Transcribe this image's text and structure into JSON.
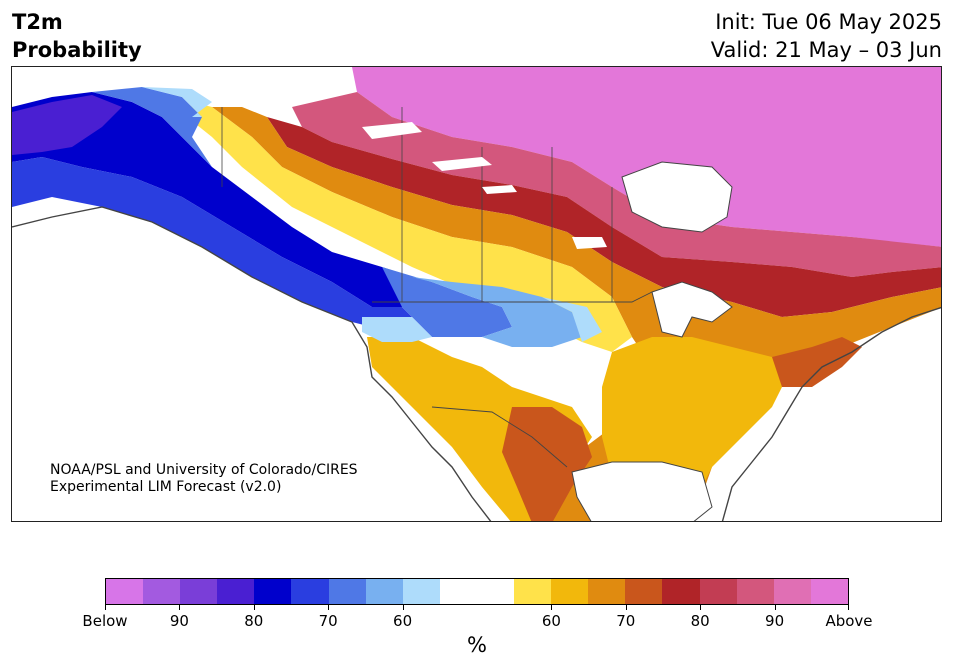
{
  "title": {
    "line1": "T2m",
    "line2": "Probability",
    "init": "Init: Tue 06 May 2025",
    "valid": "Valid: 21 May – 03 Jun"
  },
  "credit": {
    "line1": "NOAA/PSL and University of Colorado/CIRES",
    "line2": "Experimental LIM Forecast (v2.0)"
  },
  "colorbar": {
    "unit": "%",
    "colors": [
      "#d775e8",
      "#a35ae0",
      "#7a3ed8",
      "#4a1fd2",
      "#0000cc",
      "#2a3ee0",
      "#4f78e6",
      "#78b0f0",
      "#aedcfb",
      "#ffffff",
      "#ffffff",
      "#ffe24a",
      "#f2b80c",
      "#e08b10",
      "#c9561c",
      "#b02428",
      "#c23d53",
      "#d3577d",
      "#e06fb4",
      "#e377d9"
    ],
    "ticks": [
      {
        "label": "Below",
        "index": 0
      },
      {
        "label": "90",
        "index": 2
      },
      {
        "label": "80",
        "index": 4
      },
      {
        "label": "70",
        "index": 6
      },
      {
        "label": "60",
        "index": 8
      },
      {
        "label": "60",
        "index": 12
      },
      {
        "label": "70",
        "index": 14
      },
      {
        "label": "80",
        "index": 16
      },
      {
        "label": "90",
        "index": 18
      },
      {
        "label": "Above",
        "index": 20
      }
    ]
  },
  "map": {
    "region": "North America",
    "ocean_color": "#ffffff",
    "coast_color": "#444444"
  }
}
